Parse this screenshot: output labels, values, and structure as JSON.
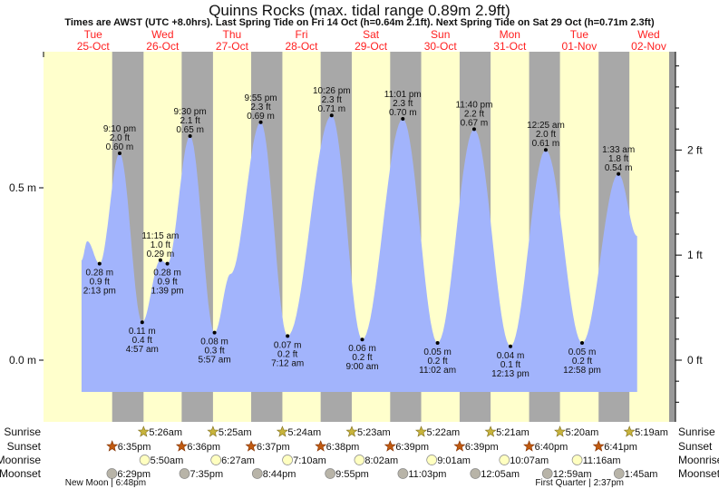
{
  "title": "Quinns Rocks (max. tidal range 0.89m 2.9ft)",
  "subtitle": "Times are AWST (UTC +8.0hrs). Last Spring Tide on Fri 14 Oct (h=0.64m 2.1ft). Next Spring Tide on Sat 29 Oct (h=0.71m 2.3ft)",
  "colors": {
    "day": "#ffffcc",
    "night": "#a8a8a8",
    "water": "#a2b4fc",
    "day_label": "#ff2020",
    "sunrise": "#c8b43c",
    "sunset": "#c05a10",
    "moonrise": "#ffffc0",
    "moonset": "#b8b4a8"
  },
  "chart_data": {
    "type": "area",
    "title": "Quinns Rocks (max. tidal range 0.89m 2.9ft)",
    "time_unit": "hours since 00:00 Tue 25-Oct",
    "days": [
      {
        "dow": "Tue",
        "date": "25-Oct"
      },
      {
        "dow": "Wed",
        "date": "26-Oct"
      },
      {
        "dow": "Thu",
        "date": "27-Oct"
      },
      {
        "dow": "Fri",
        "date": "28-Oct"
      },
      {
        "dow": "Sat",
        "date": "29-Oct"
      },
      {
        "dow": "Sun",
        "date": "30-Oct"
      },
      {
        "dow": "Mon",
        "date": "31-Oct"
      },
      {
        "dow": "Tue",
        "date": "01-Nov"
      },
      {
        "dow": "Wed",
        "date": "02-Nov"
      }
    ],
    "y_left": {
      "label_unit": "m",
      "ticks": [
        {
          "v": 0.0,
          "label": "0.0 m"
        },
        {
          "v": 0.5,
          "label": "0.5 m"
        }
      ],
      "ylim": [
        -0.18,
        0.89
      ]
    },
    "y_right": {
      "ticks": [
        {
          "ft": 0,
          "label": "0 ft"
        },
        {
          "ft": 1,
          "label": "1 ft"
        },
        {
          "ft": 2,
          "label": "2 ft"
        }
      ]
    },
    "tides": [
      {
        "t": 14.22,
        "h": 0.28,
        "type": "low",
        "m": "0.28 m",
        "ft": "0.9 ft",
        "time": "2:13 pm"
      },
      {
        "t": 21.17,
        "h": 0.6,
        "type": "high",
        "m": "0.60 m",
        "ft": "2.0 ft",
        "time": "9:10 pm"
      },
      {
        "t": 28.95,
        "h": 0.11,
        "type": "low",
        "m": "0.11 m",
        "ft": "0.4 ft",
        "time": "4:57 am"
      },
      {
        "t": 35.25,
        "h": 0.29,
        "type": "high",
        "m": "0.29 m",
        "ft": "1.0 ft",
        "time": "11:15 am"
      },
      {
        "t": 37.65,
        "h": 0.28,
        "type": "low",
        "m": "0.28 m",
        "ft": "0.9 ft",
        "time": "1:39 pm"
      },
      {
        "t": 45.5,
        "h": 0.65,
        "type": "high",
        "m": "0.65 m",
        "ft": "2.1 ft",
        "time": "9:30 pm"
      },
      {
        "t": 53.95,
        "h": 0.08,
        "type": "low",
        "m": "0.08 m",
        "ft": "0.3 ft",
        "time": "5:57 am"
      },
      {
        "t": 69.92,
        "h": 0.69,
        "type": "high",
        "m": "0.69 m",
        "ft": "2.3 ft",
        "time": "9:55 pm"
      },
      {
        "t": 79.2,
        "h": 0.07,
        "type": "low",
        "m": "0.07 m",
        "ft": "0.2 ft",
        "time": "7:12 am"
      },
      {
        "t": 94.43,
        "h": 0.71,
        "type": "high",
        "m": "0.71 m",
        "ft": "2.3 ft",
        "time": "10:26 pm"
      },
      {
        "t": 105.0,
        "h": 0.06,
        "type": "low",
        "m": "0.06 m",
        "ft": "0.2 ft",
        "time": "9:00 am"
      },
      {
        "t": 119.02,
        "h": 0.7,
        "type": "high",
        "m": "0.70 m",
        "ft": "2.3 ft",
        "time": "11:01 pm"
      },
      {
        "t": 131.03,
        "h": 0.05,
        "type": "low",
        "m": "0.05 m",
        "ft": "0.2 ft",
        "time": "11:02 am"
      },
      {
        "t": 143.67,
        "h": 0.67,
        "type": "high",
        "m": "0.67 m",
        "ft": "2.2 ft",
        "time": "11:40 pm"
      },
      {
        "t": 156.22,
        "h": 0.04,
        "type": "low",
        "m": "0.04 m",
        "ft": "0.1 ft",
        "time": "12:13 pm"
      },
      {
        "t": 168.42,
        "h": 0.61,
        "type": "high",
        "m": "0.61 m",
        "ft": "2.0 ft",
        "time": "12:25 am"
      },
      {
        "t": 180.97,
        "h": 0.05,
        "type": "low",
        "m": "0.05 m",
        "ft": "0.2 ft",
        "time": "12:58 pm"
      },
      {
        "t": 193.55,
        "h": 0.54,
        "type": "high",
        "m": "0.54 m",
        "ft": "1.8 ft",
        "time": "1:33 am"
      }
    ],
    "curve_extra": [
      {
        "t": 8,
        "h": 0.29
      },
      {
        "t": 10,
        "h": 0.345
      },
      {
        "t": 59.5,
        "h": 0.25
      },
      {
        "t": 200,
        "h": 0.36
      }
    ],
    "sunrise": [
      {
        "t": 29.43,
        "label": "5:26am"
      },
      {
        "t": 53.42,
        "label": "5:25am"
      },
      {
        "t": 77.4,
        "label": "5:24am"
      },
      {
        "t": 101.38,
        "label": "5:23am"
      },
      {
        "t": 125.37,
        "label": "5:22am"
      },
      {
        "t": 149.35,
        "label": "5:21am"
      },
      {
        "t": 173.33,
        "label": "5:20am"
      },
      {
        "t": 197.32,
        "label": "5:19am"
      }
    ],
    "sunset": [
      {
        "t": 18.58,
        "label": "6:35pm"
      },
      {
        "t": 42.6,
        "label": "6:36pm"
      },
      {
        "t": 66.62,
        "label": "6:37pm"
      },
      {
        "t": 90.63,
        "label": "6:38pm"
      },
      {
        "t": 114.65,
        "label": "6:39pm"
      },
      {
        "t": 138.65,
        "label": "6:39pm"
      },
      {
        "t": 162.67,
        "label": "6:40pm"
      },
      {
        "t": 186.68,
        "label": "6:41pm"
      }
    ],
    "moonrise": [
      {
        "t": 29.83,
        "label": "5:50am"
      },
      {
        "t": 54.45,
        "label": "6:27am"
      },
      {
        "t": 79.17,
        "label": "7:10am"
      },
      {
        "t": 104.03,
        "label": "8:02am"
      },
      {
        "t": 129.02,
        "label": "9:01am"
      },
      {
        "t": 154.12,
        "label": "10:07am"
      },
      {
        "t": 179.27,
        "label": "11:16am"
      }
    ],
    "moonset": [
      {
        "t": 18.48,
        "label": "6:29pm"
      },
      {
        "t": 43.58,
        "label": "7:35pm"
      },
      {
        "t": 68.73,
        "label": "8:44pm"
      },
      {
        "t": 93.92,
        "label": "9:55pm"
      },
      {
        "t": 119.05,
        "label": "11:03pm"
      },
      {
        "t": 144.08,
        "label": "12:05am"
      },
      {
        "t": 168.98,
        "label": "12:59am"
      },
      {
        "t": 193.75,
        "label": "1:45am"
      }
    ],
    "moon_phases": [
      {
        "t": 18.8,
        "label": "New Moon | 6:48pm"
      },
      {
        "t": 182.6,
        "label": "First Quarter | 2:37pm"
      }
    ],
    "row_labels": {
      "sunrise": "Sunrise",
      "sunset": "Sunset",
      "moonrise": "Moonrise",
      "moonset": "Moonset"
    }
  }
}
